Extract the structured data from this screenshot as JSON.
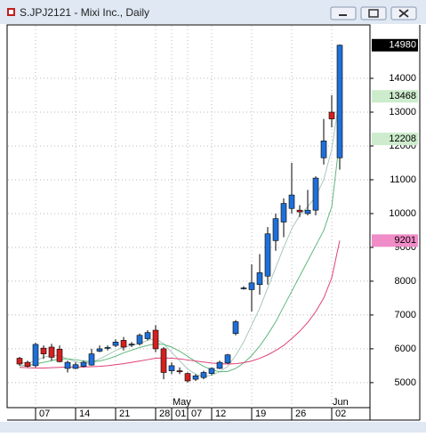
{
  "chart_data": {
    "type": "candlestick",
    "title": "S.JPJ2121 - Mixi Inc., Daily",
    "categories": [
      null,
      null,
      "07",
      null,
      null,
      null,
      null,
      "14",
      null,
      null,
      null,
      null,
      "21",
      null,
      null,
      null,
      null,
      "28",
      null,
      "01",
      null,
      "07",
      null,
      null,
      "12",
      null,
      null,
      null,
      null,
      "19",
      null,
      null,
      null,
      null,
      "26",
      null,
      null,
      null,
      null,
      "02",
      null
    ],
    "month_labels": [
      null,
      null,
      null,
      null,
      null,
      null,
      null,
      null,
      null,
      null,
      null,
      null,
      null,
      null,
      null,
      null,
      null,
      null,
      null,
      "May",
      null,
      null,
      null,
      null,
      null,
      null,
      null,
      null,
      null,
      null,
      null,
      null,
      null,
      null,
      null,
      null,
      null,
      null,
      null,
      "Jun",
      null
    ],
    "open": [
      5720,
      5600,
      5500,
      6020,
      6050,
      5990,
      5420,
      5420,
      5480,
      5520,
      5930,
      6020,
      6100,
      6250,
      6120,
      6150,
      6300,
      6550,
      6000,
      5350,
      5350,
      5270,
      5100,
      5150,
      5270,
      5420,
      5580,
      6450,
      7780,
      7750,
      7900,
      8150,
      9200,
      9750,
      10150,
      10100,
      10000,
      10100,
      11650,
      13000,
      11650
    ],
    "high": [
      5760,
      5650,
      6180,
      6100,
      6150,
      6100,
      5650,
      5600,
      5650,
      6000,
      6100,
      6100,
      6280,
      6350,
      6200,
      6450,
      6550,
      6700,
      6050,
      5600,
      5450,
      5300,
      5250,
      5350,
      5450,
      5650,
      5850,
      6850,
      7850,
      8500,
      8800,
      9600,
      10000,
      10450,
      11500,
      10250,
      10700,
      11100,
      12800,
      13500,
      15000
    ],
    "low": [
      5500,
      5450,
      5450,
      5700,
      5650,
      5600,
      5300,
      5400,
      5450,
      5500,
      5900,
      5950,
      6050,
      5950,
      6050,
      6100,
      6250,
      5900,
      5100,
      5250,
      5250,
      5000,
      5050,
      5100,
      5220,
      5400,
      5550,
      6400,
      7750,
      7100,
      7600,
      7900,
      8900,
      9300,
      10000,
      9900,
      9950,
      9950,
      11450,
      12550,
      11300
    ],
    "close": [
      5550,
      5480,
      6130,
      5850,
      5750,
      5620,
      5600,
      5530,
      5600,
      5850,
      6000,
      6040,
      6200,
      6050,
      6140,
      6400,
      6480,
      6000,
      5300,
      5500,
      5320,
      5050,
      5200,
      5300,
      5420,
      5600,
      5820,
      6800,
      7800,
      7950,
      8250,
      9400,
      9850,
      10300,
      10550,
      10050,
      10100,
      11050,
      12150,
      12800,
      14980
    ],
    "up_color": "#1f6fd6",
    "down_color": "#d42020",
    "last_price_color": "#000000",
    "overlays": [
      {
        "color": "#a8c8b8",
        "tag_color": "#cdeccd",
        "values": [
          5600,
          5570,
          5650,
          5750,
          5800,
          5800,
          5700,
          5620,
          5560,
          5600,
          5700,
          5820,
          5950,
          6050,
          6100,
          6150,
          6250,
          6300,
          6150,
          5900,
          5650,
          5400,
          5250,
          5180,
          5220,
          5320,
          5480,
          5800,
          6200,
          6700,
          7200,
          7800,
          8400,
          9000,
          9550,
          9950,
          10200,
          10500,
          11000,
          11900,
          13468
        ]
      },
      {
        "color": "#5fb87a",
        "tag_color": "#cdeccd",
        "values": [
          5500,
          5500,
          5550,
          5600,
          5650,
          5700,
          5700,
          5680,
          5640,
          5620,
          5640,
          5700,
          5780,
          5880,
          5960,
          6040,
          6100,
          6150,
          6130,
          6050,
          5930,
          5780,
          5620,
          5480,
          5380,
          5320,
          5330,
          5420,
          5580,
          5800,
          6080,
          6420,
          6800,
          7250,
          7700,
          8150,
          8600,
          9050,
          9500,
          10200,
          12208
        ]
      },
      {
        "color": "#e0407a",
        "tag_color": "#f08cc8",
        "values": [
          5450,
          5440,
          5430,
          5430,
          5440,
          5450,
          5460,
          5460,
          5460,
          5470,
          5480,
          5500,
          5530,
          5560,
          5600,
          5640,
          5680,
          5720,
          5730,
          5720,
          5700,
          5670,
          5640,
          5610,
          5580,
          5560,
          5550,
          5560,
          5590,
          5640,
          5720,
          5820,
          5950,
          6100,
          6300,
          6520,
          6780,
          7100,
          7500,
          8100,
          9201
        ]
      }
    ],
    "ylim": [
      4260,
      15580
    ],
    "yticks": [
      5000,
      6000,
      7000,
      8000,
      9000,
      10000,
      11000,
      12000,
      13000,
      14000
    ],
    "grid": true
  }
}
